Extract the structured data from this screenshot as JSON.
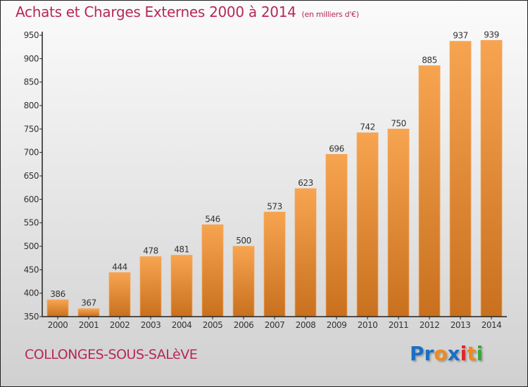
{
  "header": {
    "title": "Achats et Charges Externes 2000 à 2014",
    "unit": "(en milliers d'€)"
  },
  "footer": {
    "city": "COLLONGES-SOUS-SALèVE",
    "logo_letters": [
      {
        "char": "P",
        "color": "#1a6fc4"
      },
      {
        "char": "r",
        "color": "#1a6fc4"
      },
      {
        "char": "o",
        "color": "#f08a1c"
      },
      {
        "char": "x",
        "color": "#1a6fc4"
      },
      {
        "char": "i",
        "color": "#e0262b"
      },
      {
        "char": "t",
        "color": "#f08a1c"
      },
      {
        "char": "i",
        "color": "#3aa63a"
      }
    ]
  },
  "colors": {
    "title": "#b72856",
    "bar_top": "#f7a450",
    "bar_bottom": "#c8701e",
    "axis": "#222222",
    "label": "#333333"
  },
  "chart_data": {
    "type": "bar",
    "title": "Achats et Charges Externes 2000 à 2014 (en milliers d'€)",
    "xlabel": "",
    "ylabel": "",
    "categories": [
      "2000",
      "2001",
      "2002",
      "2003",
      "2004",
      "2005",
      "2006",
      "2007",
      "2008",
      "2009",
      "2010",
      "2011",
      "2012",
      "2013",
      "2014"
    ],
    "values": [
      386,
      367,
      444,
      478,
      481,
      546,
      500,
      573,
      623,
      696,
      742,
      750,
      885,
      937,
      939
    ],
    "ylim": [
      350,
      950
    ],
    "yticks": [
      350,
      400,
      450,
      500,
      550,
      600,
      650,
      700,
      750,
      800,
      850,
      900,
      950
    ],
    "grid": false,
    "legend": "none"
  }
}
